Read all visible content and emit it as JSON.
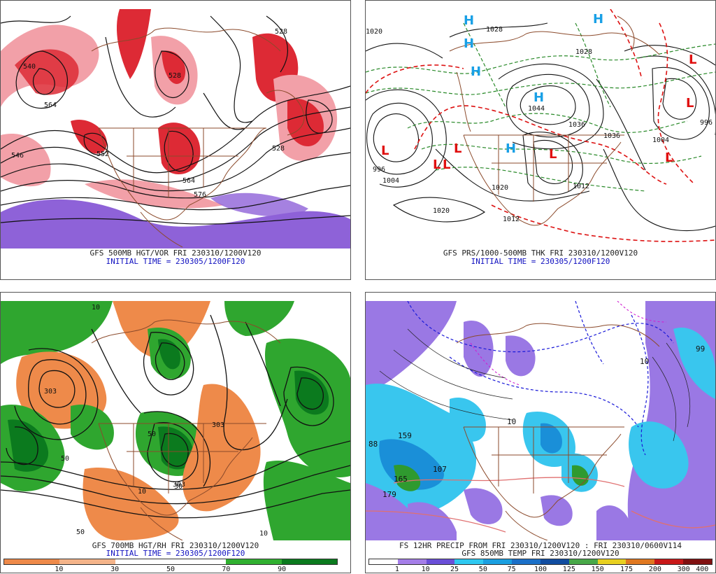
{
  "panels": [
    {
      "id": "tl",
      "title": "GFS 500MB HGT/VOR FRI 230310/1200V120",
      "init": "INITIAL TIME = 230305/1200F120",
      "labels": [
        "564",
        "540",
        "528",
        "552",
        "564",
        "576",
        "546",
        "528",
        "528"
      ],
      "palette": {
        "bg": "#ffffff",
        "fill1": "#dd2a35",
        "fill2": "#f2a0a8",
        "fill3": "#8e62d8",
        "contour": "#111111",
        "border": "#8b4a2b"
      }
    },
    {
      "id": "tr",
      "title": "GFS PRS/1000-500MB THK FRI 230310/1200V120",
      "init": "INITIAL TIME = 230305/1200F120",
      "labels": [
        "1020",
        "1028",
        "1036",
        "1044",
        "1012",
        "1004",
        "996",
        "1020",
        "1012",
        "1020",
        "1028",
        "1004",
        "996",
        "1036"
      ],
      "highs": [
        "H",
        "H",
        "H",
        "H",
        "H",
        "H"
      ],
      "lows": [
        "L",
        "L",
        "L",
        "L",
        "L",
        "L",
        "L",
        "L"
      ],
      "palette": {
        "bg": "#ffffff",
        "thk_cold": "#2a8a2a",
        "thk_warm": "#dd1111",
        "isobar": "#111111",
        "high": "#19a0e6",
        "low": "#e01010",
        "border": "#8b4a2b"
      }
    },
    {
      "id": "bl",
      "title": "GFS 700MB HGT/RH FRI 230310/1200V120",
      "init": "INITIAL TIME = 230305/1200F120",
      "labels": [
        "303",
        "303",
        "50",
        "50",
        "10",
        "30",
        "303",
        "10",
        "50",
        "10"
      ],
      "colorbar": {
        "ticks": [
          "10",
          "30",
          "50",
          "70",
          "90"
        ],
        "colors": [
          "#ee8a4a",
          "#f4b48a",
          "#ffffff",
          "#ffffff",
          "#30b030",
          "#0b7a1e"
        ]
      },
      "palette": {
        "bg": "#ffffff",
        "dry": "#ee8a4a",
        "moist": "#2fa62f",
        "moist_dark": "#0b7a1e",
        "contour": "#111111",
        "border": "#8b4a2b"
      }
    },
    {
      "id": "br",
      "title": "FS 12HR PRECIP FROM FRI 230310/1200V120 : FRI 230310/0600V114",
      "subtitle": "GFS 850MB TEMP FRI 230310/1200V120",
      "labels": [
        "159",
        "107",
        "165",
        "179",
        "88",
        "99",
        "10",
        "10"
      ],
      "colorbar": {
        "ticks": [
          "1",
          "10",
          "25",
          "50",
          "75",
          "100",
          "125",
          "150",
          "175",
          "200",
          "300",
          "400"
        ],
        "colors": [
          "#ffffff",
          "#a57ee8",
          "#6a4fd8",
          "#2ec8f0",
          "#1a9fe0",
          "#1b70c8",
          "#114da0",
          "#48a848",
          "#e8d020",
          "#e07820",
          "#c81818",
          "#801010"
        ]
      },
      "palette": {
        "bg": "#ffffff",
        "p1": "#9a78e4",
        "p2": "#39c6ee",
        "p3": "#1a8fd8",
        "p4": "#2f9a2f",
        "temp_neg": "#1a1ad8",
        "temp_pos": "#e07070",
        "temp_mag": "#d020d0",
        "border": "#8b4a2b"
      }
    }
  ]
}
